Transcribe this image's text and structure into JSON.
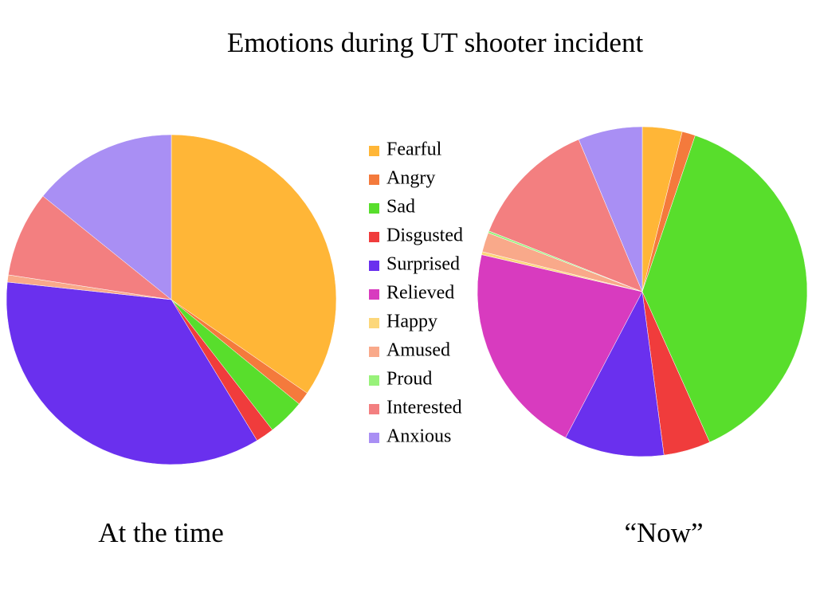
{
  "title": "Emotions during UT shooter incident",
  "chart_data": [
    {
      "type": "pie",
      "title": "At the time",
      "categories": [
        "Fearful",
        "Angry",
        "Sad",
        "Disgusted",
        "Surprised",
        "Relieved",
        "Happy",
        "Amused",
        "Proud",
        "Interested",
        "Anxious"
      ],
      "colors": [
        "#ffb637",
        "#f47a3c",
        "#58de2c",
        "#f03c3c",
        "#6a30ee",
        "#d83bbf",
        "#fcd77a",
        "#f9a98a",
        "#98f27a",
        "#f37f80",
        "#a98ff4"
      ],
      "values": [
        34.6,
        1.3,
        3.6,
        1.8,
        35.4,
        0,
        0,
        0.7,
        0,
        8.4,
        14.2
      ]
    },
    {
      "type": "pie",
      "title": "“Now”",
      "values": [
        3.9,
        1.3,
        38.1,
        4.6,
        9.8,
        20.9,
        0.3,
        1.9,
        0.2,
        12.7,
        6.3
      ]
    }
  ]
}
